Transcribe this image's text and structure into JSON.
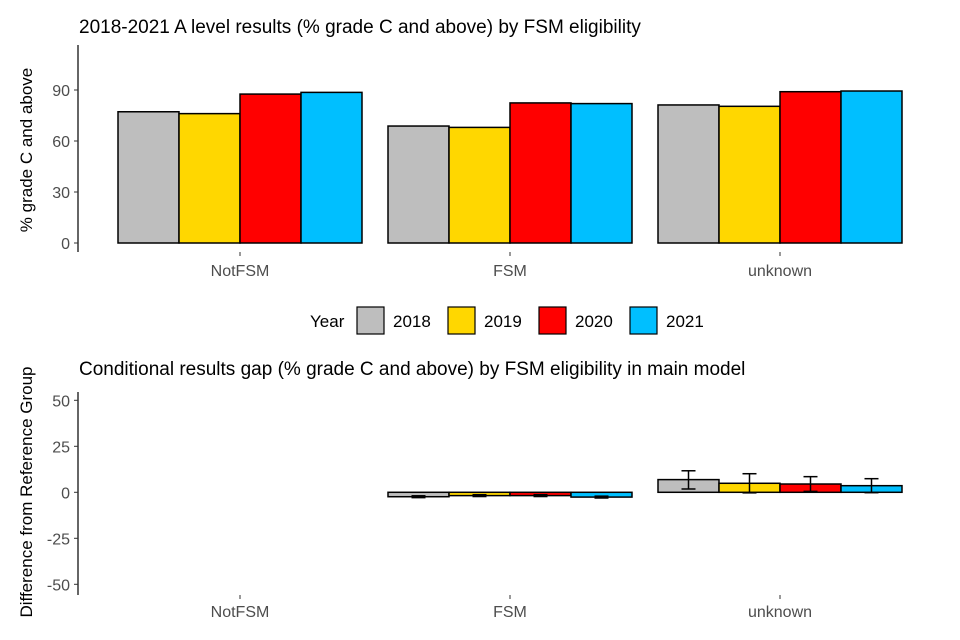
{
  "chart_data": [
    {
      "type": "bar",
      "title": "2018-2021 A level results (% grade C and above) by FSM eligibility",
      "xlabel": "",
      "ylabel": "% grade C and above",
      "categories": [
        "NotFSM",
        "FSM",
        "unknown"
      ],
      "ylim": [
        0,
        115
      ],
      "yticks": [
        0,
        30,
        60,
        90
      ],
      "series": [
        {
          "name": "2018",
          "color": "#BEBEBE",
          "values": [
            77.2,
            68.8,
            81.2
          ]
        },
        {
          "name": "2019",
          "color": "#FFD700",
          "values": [
            76.1,
            68.0,
            80.4
          ]
        },
        {
          "name": "2020",
          "color": "#FF0000",
          "values": [
            87.6,
            82.4,
            89.0
          ]
        },
        {
          "name": "2021",
          "color": "#00BFFF",
          "values": [
            88.6,
            82.0,
            89.4
          ]
        }
      ],
      "grid": false
    },
    {
      "type": "bar",
      "title": "Conditional results gap (% grade C and above) by FSM eligibility in main model",
      "xlabel": "",
      "ylabel": "Difference from Reference Group",
      "categories": [
        "NotFSM",
        "FSM",
        "unknown"
      ],
      "ylim": [
        -52,
        55
      ],
      "yticks": [
        -50,
        -25,
        0,
        25,
        50
      ],
      "series": [
        {
          "name": "2018",
          "color": "#BEBEBE",
          "values": [
            null,
            -2.4,
            6.9
          ],
          "err_low": [
            null,
            -2.9,
            1.8
          ],
          "err_high": [
            null,
            -1.9,
            11.7
          ]
        },
        {
          "name": "2019",
          "color": "#FFD700",
          "values": [
            null,
            -1.8,
            4.9
          ],
          "err_low": [
            null,
            -2.3,
            -0.3
          ],
          "err_high": [
            null,
            -1.3,
            10.1
          ]
        },
        {
          "name": "2020",
          "color": "#FF0000",
          "values": [
            null,
            -1.8,
            4.5
          ],
          "err_low": [
            null,
            -2.3,
            0.5
          ],
          "err_high": [
            null,
            -1.3,
            8.5
          ]
        },
        {
          "name": "2021",
          "color": "#00BFFF",
          "values": [
            null,
            -2.6,
            3.6
          ],
          "err_low": [
            null,
            -3.1,
            -0.2
          ],
          "err_high": [
            null,
            -2.1,
            7.4
          ]
        }
      ],
      "grid": false
    }
  ],
  "legend": {
    "title": "Year",
    "position": "between panels",
    "entries": [
      "2018",
      "2019",
      "2020",
      "2021"
    ]
  }
}
